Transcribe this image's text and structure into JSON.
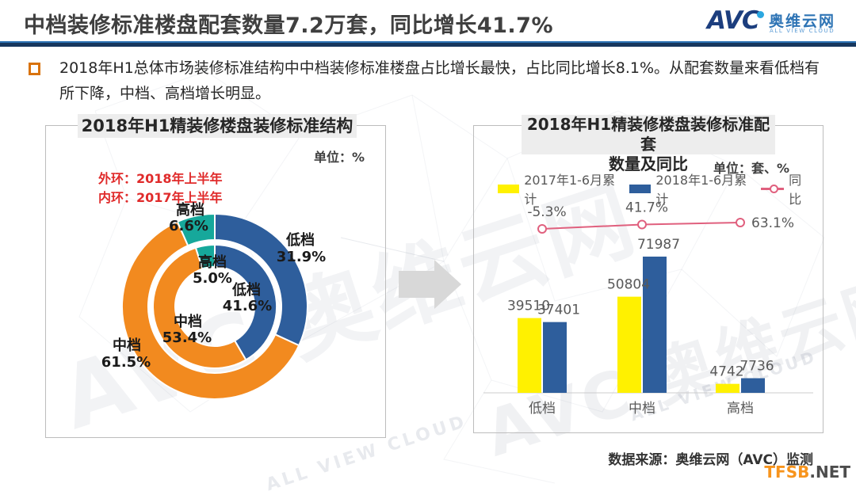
{
  "header": {
    "title": "中档装修标准楼盘配套数量7.2万套，同比增长41.7%",
    "logo": {
      "avc": "AVC",
      "cn": "奥维云网",
      "en": "ALL VIEW CLOUD"
    }
  },
  "summary": {
    "text": "2018年H1总体市场装修标准结构中中档装修标准楼盘占比增长最快，占比同比增长8.1%。从配套数量来看低档有所下降，中档、高档增长明显。"
  },
  "left_panel": {
    "title": "2018年H1精装修楼盘装修标准结构",
    "unit": "单位：%",
    "legend_outer": "外环：2018年上半年",
    "legend_inner": "内环：2017年上半年"
  },
  "right_panel": {
    "title_line1": "2018年H1精装修楼盘装修标准配套",
    "title_line2": "数量及同比",
    "unit": "单位：套、%",
    "legend": [
      {
        "label": "2017年1-6月累计",
        "color": "#fff100"
      },
      {
        "label": "2018年1-6月累计",
        "color": "#2e5e9c"
      },
      {
        "label": "同比",
        "color": "#e0607e"
      }
    ]
  },
  "footer": {
    "source": "数据来源：奥维云网（AVC）监测",
    "watermark_brand": "TFSB",
    "watermark_suffix": ".NET"
  },
  "background_watermark": {
    "brand": "AVC 奥维云网",
    "sub": "ALL VIEW CLOUD"
  },
  "colors": {
    "blue": "#2e5e9c",
    "orange": "#f28a1f",
    "teal": "#16a89b",
    "yellow": "#fff100",
    "pink": "#e0607e",
    "red_legend": "#e02b2b",
    "divider_navy": "#17375e",
    "divider_blue": "#2e74b5",
    "label_gray": "#595959"
  },
  "chart_data": [
    {
      "type": "pie",
      "variant": "double-ring-donut",
      "title": "2018年H1精装修楼盘装修标准结构",
      "unit": "%",
      "ring_legend": {
        "outer": "外环：2018年上半年",
        "inner": "内环：2017年上半年"
      },
      "rings": [
        {
          "name": "2018年上半年(外环)",
          "segments": [
            {
              "label": "低档",
              "value": 31.9
            },
            {
              "label": "中档",
              "value": 61.5
            },
            {
              "label": "高档",
              "value": 6.6
            }
          ]
        },
        {
          "name": "2017年上半年(内环)",
          "segments": [
            {
              "label": "低档",
              "value": 41.6
            },
            {
              "label": "中档",
              "value": 53.4
            },
            {
              "label": "高档",
              "value": 5.0
            }
          ]
        }
      ],
      "segment_colors": {
        "低档": "#2e5e9c",
        "中档": "#f28a1f",
        "高档": "#16a89b"
      },
      "start_angle": "12-oclock, clockwise"
    },
    {
      "type": "bar",
      "title": "2018年H1精装修楼盘装修标准配套数量及同比",
      "unit": "套、%",
      "categories": [
        "低档",
        "中档",
        "高档"
      ],
      "series": [
        {
          "name": "2017年1-6月累计",
          "values": [
            39510,
            50804,
            4742
          ],
          "color": "#fff100"
        },
        {
          "name": "2018年1-6月累计",
          "values": [
            37401,
            71987,
            7736
          ],
          "color": "#2e5e9c"
        }
      ],
      "line": {
        "name": "同比",
        "values": [
          -5.3,
          41.7,
          63.1
        ],
        "unit": "%",
        "color": "#e0607e"
      },
      "legend_position": "top",
      "grid": false,
      "value_labels": true
    }
  ]
}
